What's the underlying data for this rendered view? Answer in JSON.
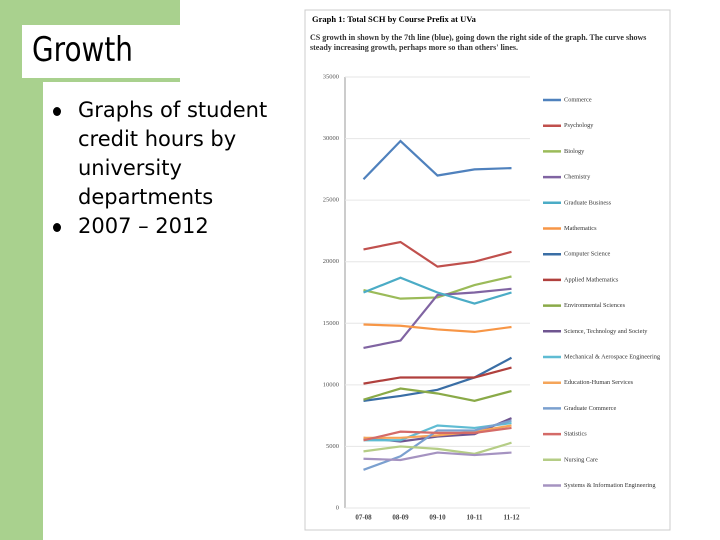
{
  "slide": {
    "title": "Growth",
    "bullets": [
      "Graphs of student credit hours by university departments",
      "2007 – 2012"
    ]
  },
  "chart_data": {
    "type": "line",
    "title": "Graph 1: Total SCH by Course Prefix at UVa",
    "subtitle": "CS growth in shown by the 7th line (blue), going down the right side of the graph. The curve shows steady increasing growth, perhaps more so than others' lines.",
    "categories": [
      "07-08",
      "08-09",
      "09-10",
      "10-11",
      "11-12"
    ],
    "ylim": [
      0,
      35000
    ],
    "yticks": [
      0,
      5000,
      10000,
      15000,
      20000,
      25000,
      30000,
      35000
    ],
    "grid": true,
    "legend": "right",
    "series": [
      {
        "name": "Commerce",
        "color": "#4f81bd",
        "values": [
          26700,
          29800,
          27000,
          27500,
          27600
        ]
      },
      {
        "name": "Psychology",
        "color": "#c0504d",
        "values": [
          21000,
          21600,
          19600,
          20000,
          20800
        ]
      },
      {
        "name": "Biology",
        "color": "#9bbb59",
        "values": [
          17700,
          17000,
          17100,
          18100,
          18800
        ]
      },
      {
        "name": "Chemistry",
        "color": "#8064a2",
        "values": [
          13000,
          13600,
          17300,
          17500,
          17800
        ]
      },
      {
        "name": "Graduate Business",
        "color": "#4bacc6",
        "values": [
          17500,
          18700,
          17500,
          16600,
          17500
        ]
      },
      {
        "name": "Mathematics",
        "color": "#f79646",
        "values": [
          14900,
          14800,
          14500,
          14300,
          14700
        ]
      },
      {
        "name": "Computer Science",
        "color": "#3a6ea5",
        "values": [
          8700,
          9100,
          9600,
          10600,
          12200
        ]
      },
      {
        "name": "Applied Mathematics",
        "color": "#b0403d",
        "values": [
          10100,
          10600,
          10600,
          10600,
          11400
        ]
      },
      {
        "name": "Environmental Sciences",
        "color": "#8aaa48",
        "values": [
          8800,
          9700,
          9300,
          8700,
          9500
        ]
      },
      {
        "name": "Science, Technology and Society",
        "color": "#6f5590",
        "values": [
          5700,
          5400,
          5800,
          6000,
          7300
        ]
      },
      {
        "name": "Mechanical & Aerospace Engineering",
        "color": "#5fbcd3",
        "values": [
          5500,
          5500,
          6700,
          6500,
          6900
        ]
      },
      {
        "name": "Education-Human Services",
        "color": "#f5a55a",
        "values": [
          5700,
          5700,
          5900,
          6200,
          6700
        ]
      },
      {
        "name": "Graduate Commerce",
        "color": "#7ba0cf",
        "values": [
          3100,
          4200,
          6300,
          6300,
          7100
        ]
      },
      {
        "name": "Statistics",
        "color": "#d46b68",
        "values": [
          5500,
          6200,
          6100,
          6100,
          6500
        ]
      },
      {
        "name": "Nursing Care",
        "color": "#b5cd86",
        "values": [
          4600,
          5000,
          4800,
          4400,
          5300
        ]
      },
      {
        "name": "Systems & Information Engineering",
        "color": "#a593c1",
        "values": [
          4000,
          3900,
          4500,
          4300,
          4500
        ]
      }
    ]
  }
}
